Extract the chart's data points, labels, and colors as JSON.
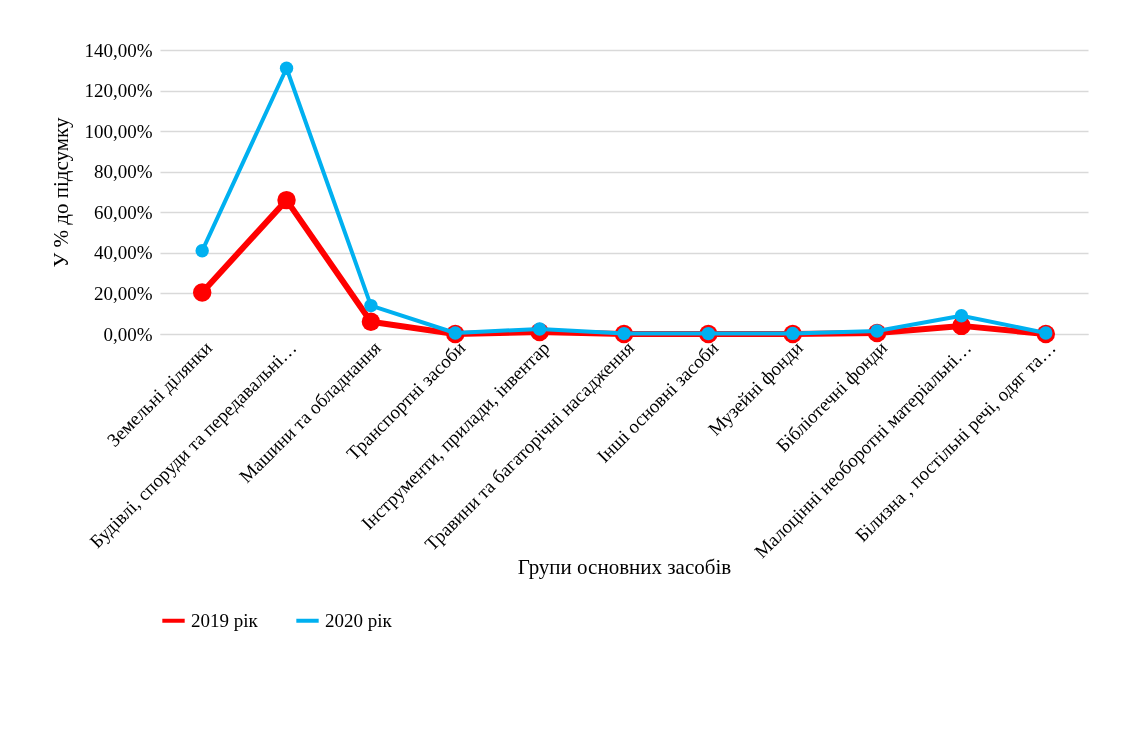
{
  "chart_data": {
    "type": "line",
    "xlabel": "Групи основних засобів",
    "ylabel": "У % до підсумку",
    "categories": [
      "Земельні ділянки",
      "Будівлі, споруди та передавальні…",
      "Машини та обладнання",
      "Транспортні засоби",
      "Інструменти, прилади, інвентар",
      "Травини та багаторічні насадження",
      "Інші основні засоби",
      "Музейні фонди",
      "Бібліотечні фонди",
      "Малоцінні необоротні матеріальні…",
      "Білизна , постільні речі, одяг та…"
    ],
    "series": [
      {
        "name": "2019 рік",
        "color": "#ff0000",
        "values": [
          20.5,
          66,
          6,
          0,
          1,
          0,
          0,
          0,
          0.5,
          4,
          0
        ]
      },
      {
        "name": "2020 рік",
        "color": "#00b0f0",
        "values": [
          41,
          131,
          14,
          0.5,
          2.5,
          0.2,
          0.2,
          0.3,
          1.5,
          9,
          0.5
        ]
      }
    ],
    "ylim": [
      0,
      140
    ],
    "yticks": [
      {
        "value": 0,
        "label": "0,00%"
      },
      {
        "value": 20,
        "label": "20,00%"
      },
      {
        "value": 40,
        "label": "40,00%"
      },
      {
        "value": 60,
        "label": "60,00%"
      },
      {
        "value": 80,
        "label": "80,00%"
      },
      {
        "value": 100,
        "label": "100,00%"
      },
      {
        "value": 120,
        "label": "120,00%"
      },
      {
        "value": 140,
        "label": "140,00%"
      }
    ],
    "grid": "y",
    "legend": "bottom",
    "marker": "circle",
    "line_style": "solid"
  }
}
